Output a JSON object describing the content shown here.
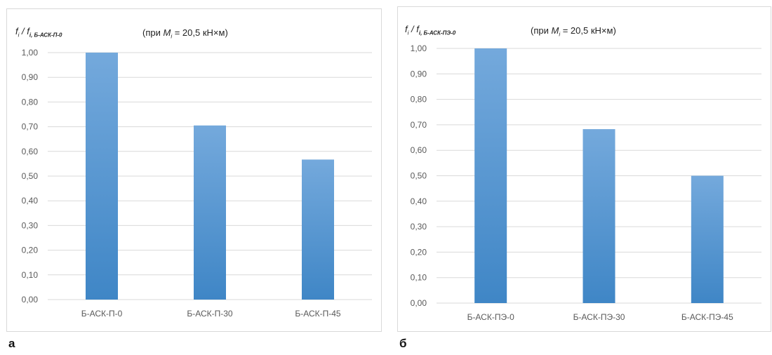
{
  "colors": {
    "bar_top": "#74a9dc",
    "bar_bottom": "#3f86c6",
    "grid": "#d9d9d9",
    "axis_text": "#595959"
  },
  "panels": [
    {
      "letter": "а",
      "ylabel": {
        "main": "f",
        "sub1": "i",
        "sep": " / ",
        "main2": "f",
        "sub2": "i, Б-АСК-П-0"
      },
      "note": {
        "prefix": "(при ",
        "var": "M",
        "sub": "i",
        "suffix": " = 20,5 кН×м)"
      }
    },
    {
      "letter": "б",
      "ylabel": {
        "main": "f",
        "sub1": "i",
        "sep": " / ",
        "main2": "f",
        "sub2": "i, Б-АСК-ПЭ-0"
      },
      "note": {
        "prefix": "(при ",
        "var": "M",
        "sub": "i",
        "suffix": " = 20,5 кН×м)"
      }
    }
  ],
  "chart_data": [
    {
      "type": "bar",
      "categories": [
        "Б-АСК-П-0",
        "Б-АСК-П-30",
        "Б-АСК-П-45"
      ],
      "values": [
        1.0,
        0.705,
        0.567
      ],
      "ylim": [
        0,
        1.0
      ],
      "yticks": [
        "0,00",
        "0,10",
        "0,20",
        "0,30",
        "0,40",
        "0,50",
        "0,60",
        "0,70",
        "0,80",
        "0,90",
        "1,00"
      ],
      "grid": true
    },
    {
      "type": "bar",
      "categories": [
        "Б-АСК-ПЭ-0",
        "Б-АСК-ПЭ-30",
        "Б-АСК-ПЭ-45"
      ],
      "values": [
        1.0,
        0.683,
        0.5
      ],
      "ylim": [
        0,
        1.0
      ],
      "yticks": [
        "0,00",
        "0,10",
        "0,20",
        "0,30",
        "0,40",
        "0,50",
        "0,60",
        "0,70",
        "0,80",
        "0,90",
        "1,00"
      ],
      "grid": true
    }
  ]
}
